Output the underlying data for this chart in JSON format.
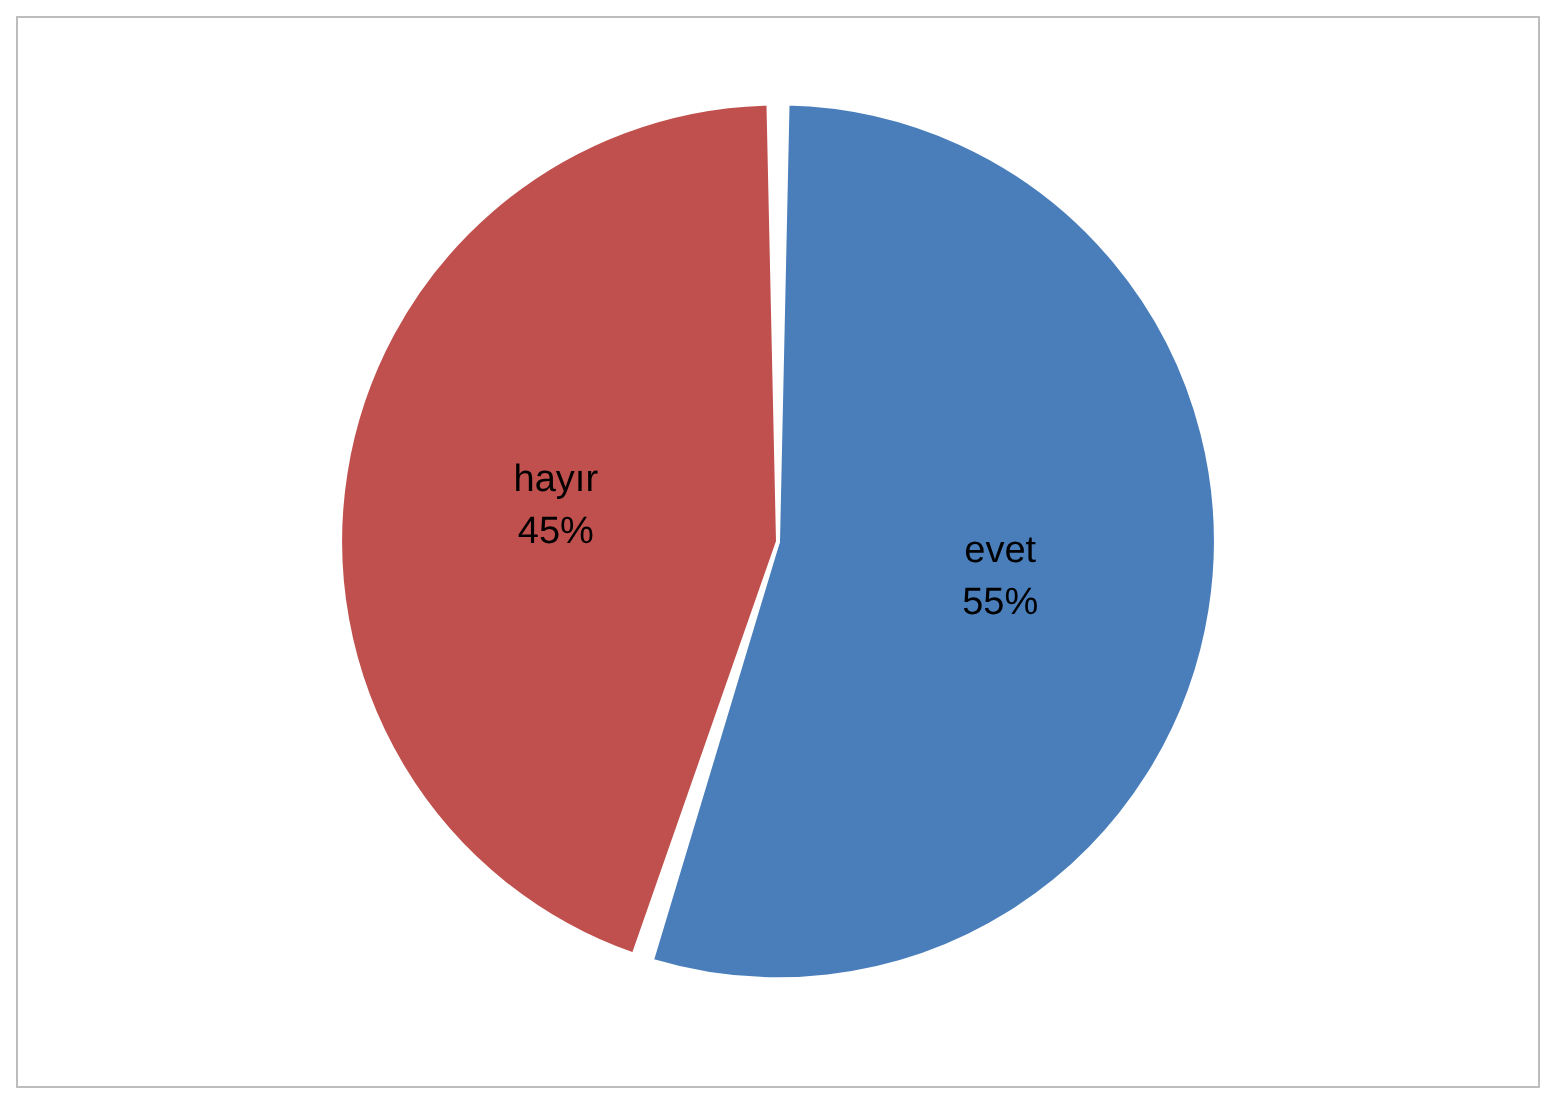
{
  "chart_data": {
    "type": "pie",
    "categories": [
      "evet",
      "hayır"
    ],
    "values": [
      55,
      45
    ],
    "value_labels": [
      "55%",
      "45%"
    ],
    "colors": [
      "#4a7ebb",
      "#c0504d"
    ]
  }
}
